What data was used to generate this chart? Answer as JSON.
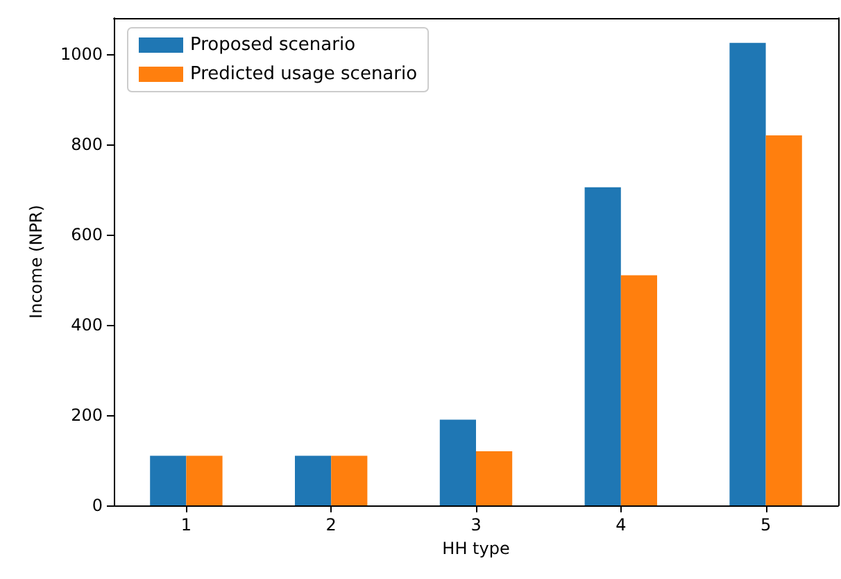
{
  "chart_data": {
    "type": "bar",
    "xlabel": "HH type",
    "ylabel": "Income (NPR)",
    "categories": [
      "1",
      "2",
      "3",
      "4",
      "5"
    ],
    "series": [
      {
        "name": "Proposed scenario",
        "color": "#1f77b4",
        "values": [
          110,
          110,
          190,
          705,
          1025
        ]
      },
      {
        "name": "Predicted usage scenario",
        "color": "#ff7f0e",
        "values": [
          110,
          110,
          120,
          510,
          820
        ]
      }
    ],
    "ylim": [
      0,
      1080
    ],
    "yticks": [
      0,
      200,
      400,
      600,
      800,
      1000
    ],
    "grid": false,
    "legend": "top left"
  }
}
